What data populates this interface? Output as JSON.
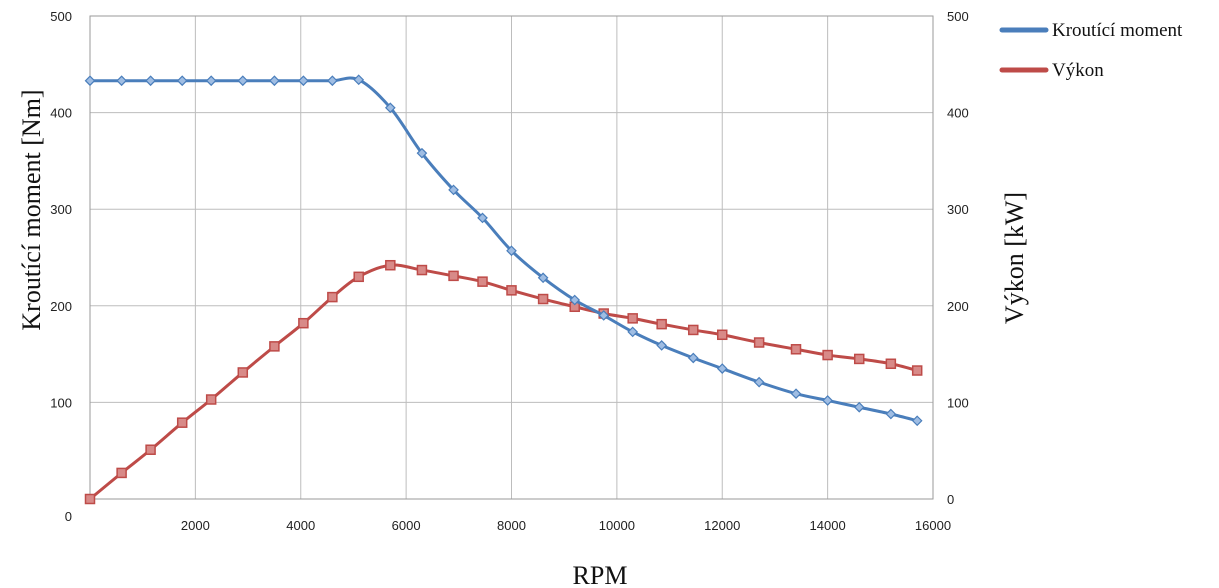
{
  "chart_data": {
    "type": "line",
    "xlabel": "RPM",
    "ylabel": "Kroutící moment  [Nm]",
    "y2label": "Výkon [kW]",
    "xlim": [
      0,
      16000
    ],
    "ylim": [
      0,
      500
    ],
    "y2lim": [
      0,
      500
    ],
    "x_ticks": [
      "2000",
      "4000",
      "6000",
      "8000",
      "10000",
      "12000",
      "14000",
      "16000"
    ],
    "y_ticks": [
      "0",
      "100",
      "200",
      "300",
      "400",
      "500"
    ],
    "y2_ticks": [
      "0",
      "100",
      "200",
      "300",
      "400",
      "500"
    ],
    "grid": true,
    "legend_position": "top-right",
    "series": [
      {
        "name": "Kroutící moment",
        "axis": "left",
        "color": "#4a7ebb",
        "marker": "diamond",
        "x": [
          0,
          600,
          1150,
          1750,
          2300,
          2900,
          3500,
          4050,
          4600,
          5100,
          5700,
          6300,
          6900,
          7450,
          8000,
          8600,
          9200,
          9750,
          10300,
          10850,
          11450,
          12000,
          12700,
          13400,
          14000,
          14600,
          15200,
          15700
        ],
        "values": [
          433,
          433,
          433,
          433,
          433,
          433,
          433,
          433,
          433,
          434,
          405,
          358,
          320,
          291,
          257,
          229,
          206,
          190,
          173,
          159,
          146,
          135,
          121,
          109,
          102,
          95,
          88,
          81
        ]
      },
      {
        "name": "Výkon",
        "axis": "right",
        "color": "#be4b48",
        "marker": "square",
        "x": [
          0,
          600,
          1150,
          1750,
          2300,
          2900,
          3500,
          4050,
          4600,
          5100,
          5700,
          6300,
          6900,
          7450,
          8000,
          8600,
          9200,
          9750,
          10300,
          10850,
          11450,
          12000,
          12700,
          13400,
          14000,
          14600,
          15200,
          15700
        ],
        "values": [
          0,
          27,
          51,
          79,
          103,
          131,
          158,
          182,
          209,
          230,
          242,
          237,
          231,
          225,
          216,
          207,
          199,
          192,
          187,
          181,
          175,
          170,
          162,
          155,
          149,
          145,
          140,
          133
        ]
      }
    ]
  }
}
